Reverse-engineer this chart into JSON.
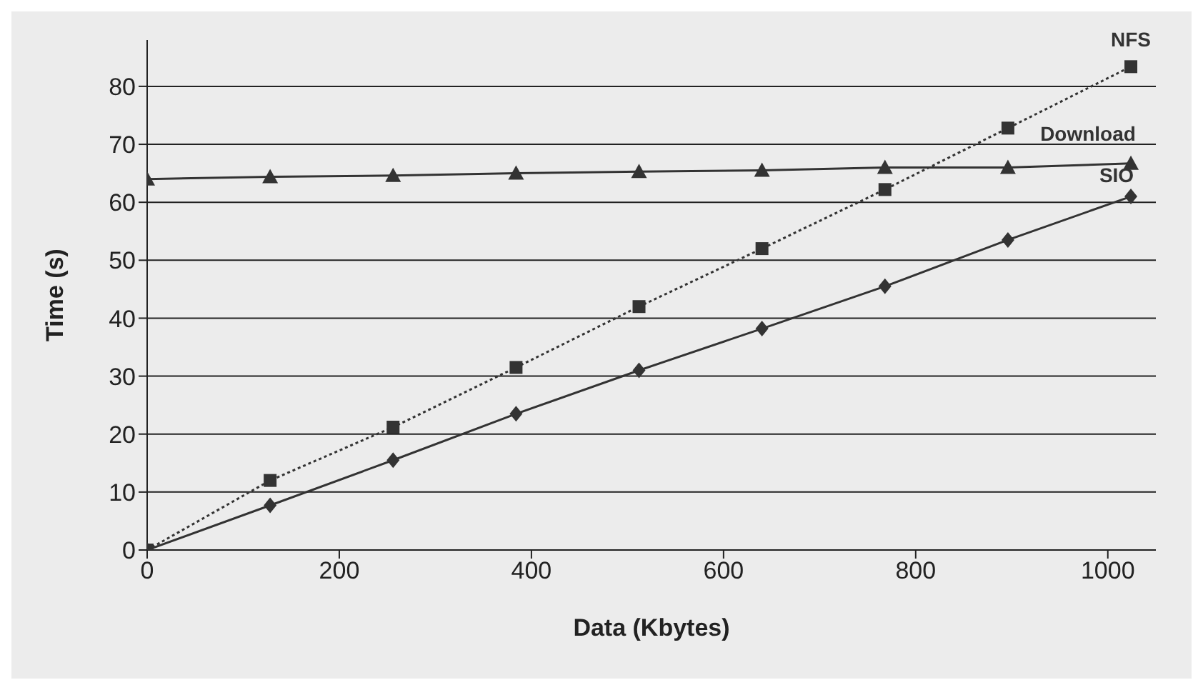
{
  "chart_data": {
    "type": "line",
    "xlabel": "Data (Kbytes)",
    "ylabel": "Time (s)",
    "x": [
      0,
      128,
      256,
      384,
      512,
      640,
      768,
      896,
      1024
    ],
    "series": [
      {
        "name": "NFS",
        "color": "#333333",
        "marker": "square",
        "line_style": "dotted",
        "values": [
          0,
          12,
          21.2,
          31.5,
          42,
          52,
          62.2,
          72.8,
          83.4
        ]
      },
      {
        "name": "Download",
        "color": "#333333",
        "marker": "triangle",
        "line_style": "solid",
        "values": [
          64,
          64.4,
          64.6,
          65,
          65.3,
          65.5,
          66,
          66,
          66.7
        ]
      },
      {
        "name": "SIO",
        "color": "#333333",
        "marker": "diamond",
        "line_style": "solid",
        "values": [
          0,
          7.7,
          15.5,
          23.5,
          31,
          38.2,
          45.5,
          53.5,
          61
        ]
      }
    ],
    "xlim": [
      0,
      1050
    ],
    "xticks": [
      0,
      200,
      400,
      600,
      800,
      1000
    ],
    "ylim": [
      0,
      88
    ],
    "yticks": [
      0,
      10,
      20,
      30,
      40,
      50,
      60,
      70,
      80
    ],
    "grid": "y"
  }
}
